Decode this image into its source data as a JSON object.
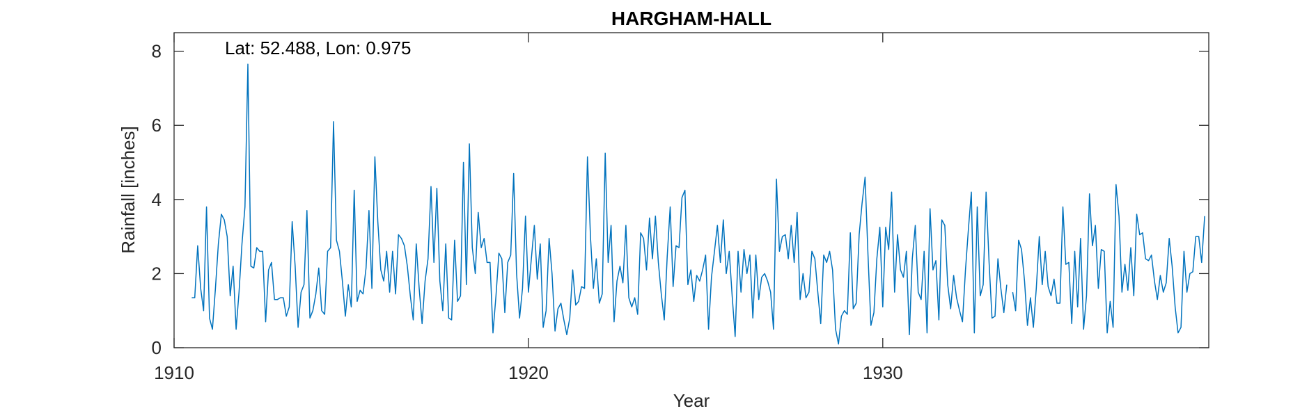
{
  "chart_data": {
    "type": "line",
    "title": "HARGHAM-HALL",
    "xlabel": "Year",
    "ylabel": "Rainfall [inches]",
    "annotation": "Lat: 52.488, Lon: 0.975",
    "xlim": [
      1910,
      1939.2
    ],
    "ylim": [
      0,
      8.5
    ],
    "xticks": [
      1910,
      1920,
      1930
    ],
    "yticks": [
      0,
      2,
      4,
      6,
      8
    ],
    "grid": false,
    "line_color": "#0072BD",
    "series": [
      {
        "start_year": 1910.5,
        "step_years": 0.0833333,
        "values": [
          1.35,
          1.35,
          2.75,
          1.6,
          1.0,
          3.8,
          0.8,
          0.5,
          1.6,
          2.8,
          3.6,
          3.45,
          3.0,
          1.4,
          2.2,
          0.5,
          1.5,
          2.8,
          3.8,
          7.65,
          2.2,
          2.15,
          2.7,
          2.6,
          2.6,
          0.7,
          2.1,
          2.3,
          1.3,
          1.3,
          1.35,
          1.35,
          0.85,
          1.1,
          3.4,
          2.2,
          0.55,
          1.5,
          1.7,
          3.7,
          0.8,
          1.0,
          1.45,
          2.15,
          1.0,
          0.9,
          2.6,
          2.7,
          6.1,
          2.9,
          2.6,
          1.8,
          0.85,
          1.7,
          1.1,
          4.25,
          1.25,
          1.55,
          1.45,
          2.15,
          3.7,
          1.6,
          5.15,
          3.4,
          2.1,
          1.8,
          2.6,
          1.5,
          2.6,
          1.45,
          3.05,
          2.95,
          2.75,
          2.2,
          1.4,
          0.75,
          2.8,
          1.6,
          0.65,
          1.8,
          2.4,
          4.35,
          2.3,
          4.3,
          1.8,
          1.0,
          2.8,
          0.8,
          0.75,
          2.9,
          1.25,
          1.4,
          5.0,
          1.7,
          5.5,
          2.7,
          2.0,
          3.65,
          2.7,
          2.95,
          2.3,
          2.3,
          0.4,
          1.4,
          2.55,
          2.4,
          0.95,
          2.3,
          2.5,
          4.7,
          2.0,
          0.8,
          1.6,
          3.55,
          1.5,
          2.4,
          3.3,
          1.85,
          2.8,
          0.55,
          1.0,
          2.95,
          2.0,
          0.45,
          1.05,
          1.2,
          0.75,
          0.35,
          0.8,
          2.1,
          1.15,
          1.25,
          1.65,
          1.6,
          5.15,
          3.0,
          1.6,
          2.4,
          1.2,
          1.45,
          5.25,
          2.3,
          3.3,
          0.7,
          1.8,
          2.2,
          1.75,
          3.3,
          1.35,
          1.1,
          1.35,
          0.9,
          3.1,
          2.95,
          2.1,
          3.5,
          2.4,
          3.55,
          2.3,
          1.45,
          0.75,
          2.45,
          3.8,
          1.65,
          2.75,
          2.7,
          4.05,
          4.25,
          1.7,
          2.1,
          1.25,
          1.95,
          1.8,
          2.1,
          2.5,
          0.5,
          1.9,
          2.6,
          3.3,
          2.3,
          3.45,
          2.0,
          2.6,
          1.4,
          0.3,
          2.6,
          1.5,
          2.65,
          2.0,
          2.5,
          0.8,
          2.5,
          1.3,
          1.9,
          2.0,
          1.8,
          1.5,
          0.5,
          4.55,
          2.6,
          3.0,
          3.05,
          2.4,
          3.3,
          2.3,
          3.65,
          1.3,
          2.0,
          1.35,
          1.5,
          2.6,
          2.4,
          1.5,
          0.65,
          2.5,
          2.3,
          2.6,
          2.1,
          0.5,
          0.1,
          0.85,
          1.0,
          0.9,
          3.1,
          1.05,
          1.2,
          3.05,
          3.9,
          4.6,
          2.5,
          0.6,
          0.95,
          2.4,
          3.25,
          1.1,
          3.25,
          2.65,
          4.2,
          1.5,
          3.05,
          2.1,
          1.9,
          2.6,
          0.35,
          2.4,
          3.3,
          1.5,
          1.3,
          2.6,
          0.4,
          3.75,
          2.1,
          2.35,
          0.75,
          3.45,
          3.3,
          1.7,
          1.05,
          1.95,
          1.35,
          1.0,
          0.7,
          2.1,
          3.2,
          4.2,
          0.4,
          3.8,
          1.4,
          1.7,
          4.2,
          2.3,
          0.8,
          0.85,
          2.4,
          1.6,
          0.95,
          1.7,
          null,
          1.5,
          1.0,
          2.9,
          2.65,
          1.8,
          0.6,
          1.35,
          0.55,
          1.6,
          3.0,
          1.7,
          2.6,
          1.65,
          1.4,
          1.85,
          1.2,
          1.2,
          3.8,
          2.25,
          2.3,
          0.65,
          2.6,
          1.1,
          2.95,
          0.5,
          1.4,
          4.15,
          2.75,
          3.3,
          1.6,
          2.65,
          2.6,
          0.4,
          1.25,
          0.55,
          4.4,
          3.55,
          1.5,
          2.25,
          1.55,
          2.7,
          1.4,
          3.6,
          3.05,
          3.1,
          2.4,
          2.35,
          2.5,
          1.8,
          1.3,
          1.95,
          1.5,
          1.75,
          2.95,
          2.2,
          1.1,
          0.4,
          0.55,
          2.6,
          1.5,
          2.0,
          2.05,
          3.0,
          3.0,
          2.3,
          3.55
        ]
      }
    ]
  }
}
